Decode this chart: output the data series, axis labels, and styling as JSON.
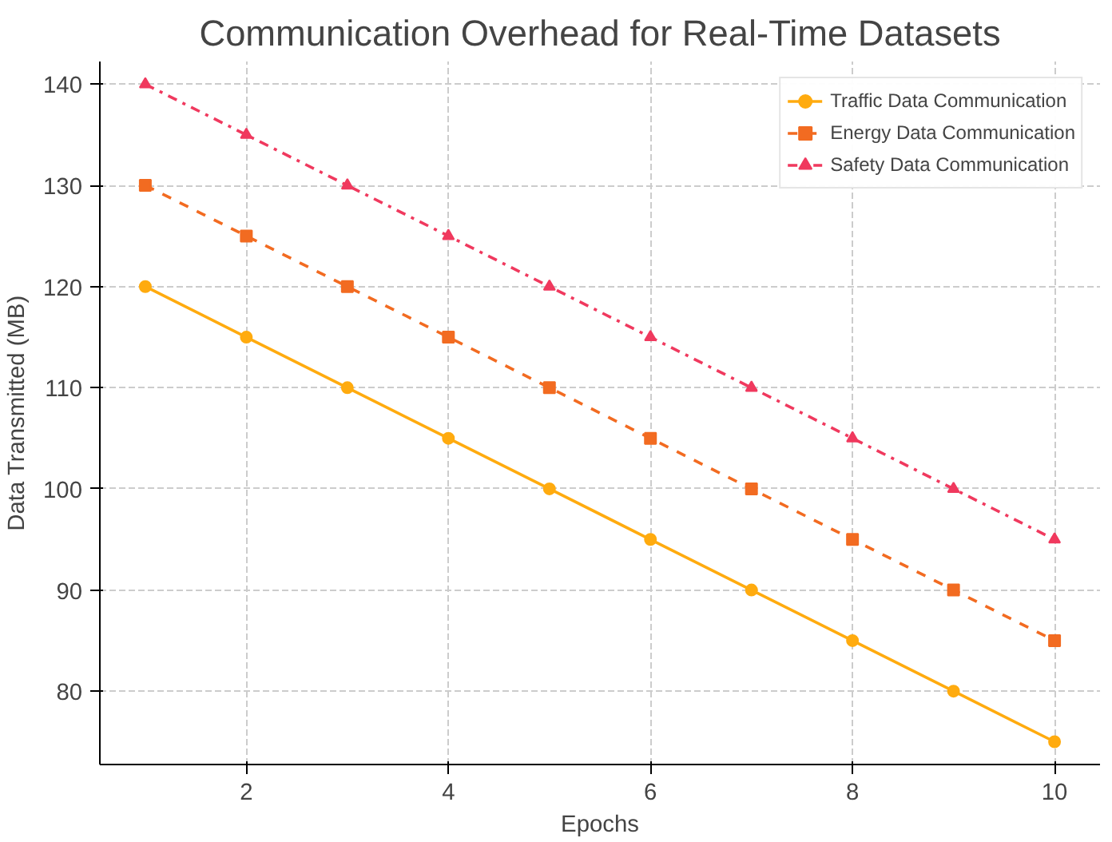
{
  "chart_data": {
    "type": "line",
    "title": "Communication Overhead for Real-Time Datasets",
    "xlabel": "Epochs",
    "ylabel": "Data Transmitted (MB)",
    "x": [
      1,
      2,
      3,
      4,
      5,
      6,
      7,
      8,
      9,
      10
    ],
    "series": [
      {
        "name": "Traffic Data Communication",
        "color": "#ffab0f",
        "marker": "circle",
        "line_style": "solid",
        "values": [
          120,
          115,
          110,
          105,
          100,
          95,
          90,
          85,
          80,
          75
        ]
      },
      {
        "name": "Energy Data Communication",
        "color": "#f26b21",
        "marker": "square",
        "line_style": "dashed",
        "values": [
          130,
          125,
          120,
          115,
          110,
          105,
          100,
          95,
          90,
          85
        ]
      },
      {
        "name": "Safety Data Communication",
        "color": "#f0395e",
        "marker": "triangle",
        "line_style": "dashdot",
        "values": [
          140,
          135,
          130,
          125,
          120,
          115,
          110,
          105,
          100,
          95
        ]
      }
    ],
    "xlim": [
      0.55,
      10.45
    ],
    "ylim": [
      72.75,
      142.25
    ],
    "xticks": [
      2,
      4,
      6,
      8,
      10
    ],
    "yticks": [
      80,
      90,
      100,
      110,
      120,
      130,
      140
    ],
    "grid": true,
    "legend": "top right"
  }
}
